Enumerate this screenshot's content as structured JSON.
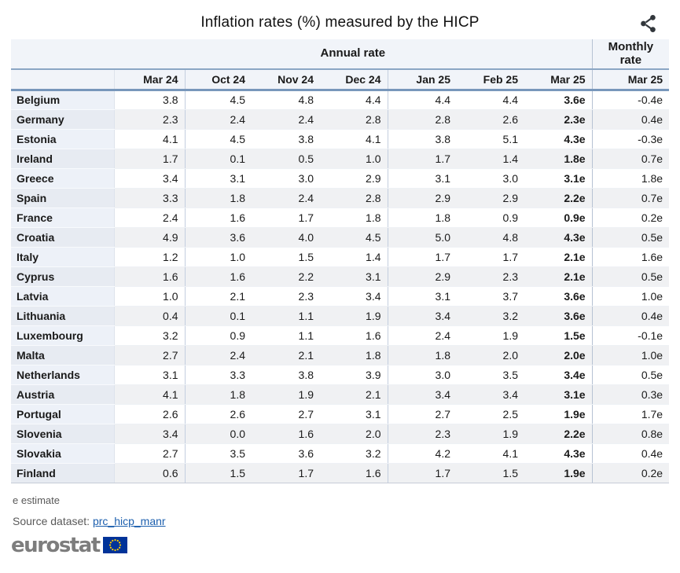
{
  "title": "Inflation rates (%) measured by the HICP",
  "toolbar": {
    "share_icon": "share-icon"
  },
  "table": {
    "group_headers": {
      "annual": "Annual rate",
      "monthly": "Monthly rate"
    },
    "columns": [
      "Mar 24",
      "Oct 24",
      "Nov 24",
      "Dec 24",
      "Jan 25",
      "Feb 25",
      "Mar 25"
    ],
    "monthly_column": "Mar 25"
  },
  "chart_data": {
    "type": "table",
    "title": "Inflation rates (%) measured by the HICP",
    "column_groups": [
      "Annual rate",
      "Monthly rate"
    ],
    "categories": [
      "Mar 24",
      "Oct 24",
      "Nov 24",
      "Dec 24",
      "Jan 25",
      "Feb 25",
      "Mar 25",
      "Mar 25 (monthly)"
    ],
    "value_flag_legend": "e estimate",
    "series": [
      {
        "name": "Belgium",
        "values": [
          "3.8",
          "4.5",
          "4.8",
          "4.4",
          "4.4",
          "4.4",
          "3.6e",
          "-0.4e"
        ]
      },
      {
        "name": "Germany",
        "values": [
          "2.3",
          "2.4",
          "2.4",
          "2.8",
          "2.8",
          "2.6",
          "2.3e",
          "0.4e"
        ]
      },
      {
        "name": "Estonia",
        "values": [
          "4.1",
          "4.5",
          "3.8",
          "4.1",
          "3.8",
          "5.1",
          "4.3e",
          "-0.3e"
        ]
      },
      {
        "name": "Ireland",
        "values": [
          "1.7",
          "0.1",
          "0.5",
          "1.0",
          "1.7",
          "1.4",
          "1.8e",
          "0.7e"
        ]
      },
      {
        "name": "Greece",
        "values": [
          "3.4",
          "3.1",
          "3.0",
          "2.9",
          "3.1",
          "3.0",
          "3.1e",
          "1.8e"
        ]
      },
      {
        "name": "Spain",
        "values": [
          "3.3",
          "1.8",
          "2.4",
          "2.8",
          "2.9",
          "2.9",
          "2.2e",
          "0.7e"
        ]
      },
      {
        "name": "France",
        "values": [
          "2.4",
          "1.6",
          "1.7",
          "1.8",
          "1.8",
          "0.9",
          "0.9e",
          "0.2e"
        ]
      },
      {
        "name": "Croatia",
        "values": [
          "4.9",
          "3.6",
          "4.0",
          "4.5",
          "5.0",
          "4.8",
          "4.3e",
          "0.5e"
        ]
      },
      {
        "name": "Italy",
        "values": [
          "1.2",
          "1.0",
          "1.5",
          "1.4",
          "1.7",
          "1.7",
          "2.1e",
          "1.6e"
        ]
      },
      {
        "name": "Cyprus",
        "values": [
          "1.6",
          "1.6",
          "2.2",
          "3.1",
          "2.9",
          "2.3",
          "2.1e",
          "0.5e"
        ]
      },
      {
        "name": "Latvia",
        "values": [
          "1.0",
          "2.1",
          "2.3",
          "3.4",
          "3.1",
          "3.7",
          "3.6e",
          "1.0e"
        ]
      },
      {
        "name": "Lithuania",
        "values": [
          "0.4",
          "0.1",
          "1.1",
          "1.9",
          "3.4",
          "3.2",
          "3.6e",
          "0.4e"
        ]
      },
      {
        "name": "Luxembourg",
        "values": [
          "3.2",
          "0.9",
          "1.1",
          "1.6",
          "2.4",
          "1.9",
          "1.5e",
          "-0.1e"
        ]
      },
      {
        "name": "Malta",
        "values": [
          "2.7",
          "2.4",
          "2.1",
          "1.8",
          "1.8",
          "2.0",
          "2.0e",
          "1.0e"
        ]
      },
      {
        "name": "Netherlands",
        "values": [
          "3.1",
          "3.3",
          "3.8",
          "3.9",
          "3.0",
          "3.5",
          "3.4e",
          "0.5e"
        ]
      },
      {
        "name": "Austria",
        "values": [
          "4.1",
          "1.8",
          "1.9",
          "2.1",
          "3.4",
          "3.4",
          "3.1e",
          "0.3e"
        ]
      },
      {
        "name": "Portugal",
        "values": [
          "2.6",
          "2.6",
          "2.7",
          "3.1",
          "2.7",
          "2.5",
          "1.9e",
          "1.7e"
        ]
      },
      {
        "name": "Slovenia",
        "values": [
          "3.4",
          "0.0",
          "1.6",
          "2.0",
          "2.3",
          "1.9",
          "2.2e",
          "0.8e"
        ]
      },
      {
        "name": "Slovakia",
        "values": [
          "2.7",
          "3.5",
          "3.6",
          "3.2",
          "4.2",
          "4.1",
          "4.3e",
          "0.4e"
        ]
      },
      {
        "name": "Finland",
        "values": [
          "0.6",
          "1.5",
          "1.7",
          "1.6",
          "1.7",
          "1.5",
          "1.9e",
          "0.2e"
        ]
      }
    ]
  },
  "footer": {
    "footnote": "e estimate",
    "source_label": "Source dataset:",
    "source_link": "prc_hicp_manr",
    "logo_text": "eurostat"
  },
  "colors": {
    "header_bg": "#f1f4f9",
    "label_bg": "#edf1f8",
    "stripe_bg": "#f0f1f3",
    "header_rule_blue": "#7897bb",
    "group_border": "#c3cedf",
    "link_blue": "#1c5fae",
    "logo_grey": "#7d7d7d",
    "eu_flag_blue": "#003399",
    "eu_star_yellow": "#ffcc00",
    "icon_dark": "#32373c"
  }
}
